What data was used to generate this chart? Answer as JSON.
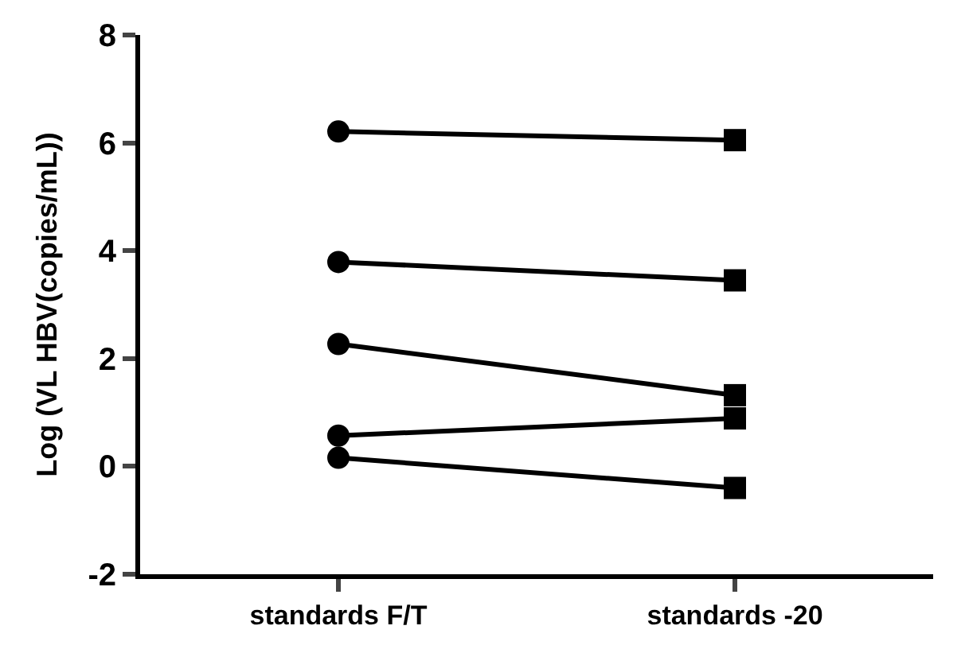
{
  "chart_data": {
    "type": "line",
    "ylabel": "Log (VL HBV(copies/mL))",
    "categories": [
      "standards F/T",
      "standards -20"
    ],
    "ylim": [
      -2,
      8
    ],
    "yticks": [
      -2,
      0,
      2,
      4,
      6,
      8
    ],
    "series": [
      {
        "color": "#000000",
        "values": [
          6.21,
          6.05
        ]
      },
      {
        "color": "#000000",
        "values": [
          3.79,
          3.45
        ]
      },
      {
        "color": "#000000",
        "values": [
          2.27,
          1.32
        ]
      },
      {
        "color": "#000000",
        "values": [
          0.57,
          0.89
        ]
      },
      {
        "color": "#000000",
        "values": [
          0.16,
          -0.4
        ]
      },
      {
        "type": "scatter",
        "marker": "circle",
        "color": "#000000",
        "x": [
          "standards F/T",
          "standards F/T",
          "standards F/T",
          "standards F/T",
          "standards F/T"
        ],
        "values": [
          6.21,
          3.79,
          2.27,
          0.57,
          0.16
        ]
      },
      {
        "type": "scatter",
        "marker": "square",
        "color": "#000000",
        "x": [
          "standards -20",
          "standards -20",
          "standards -20",
          "standards -20",
          "standards -20"
        ],
        "values": [
          6.05,
          3.45,
          1.32,
          0.89,
          -0.4
        ]
      }
    ]
  }
}
